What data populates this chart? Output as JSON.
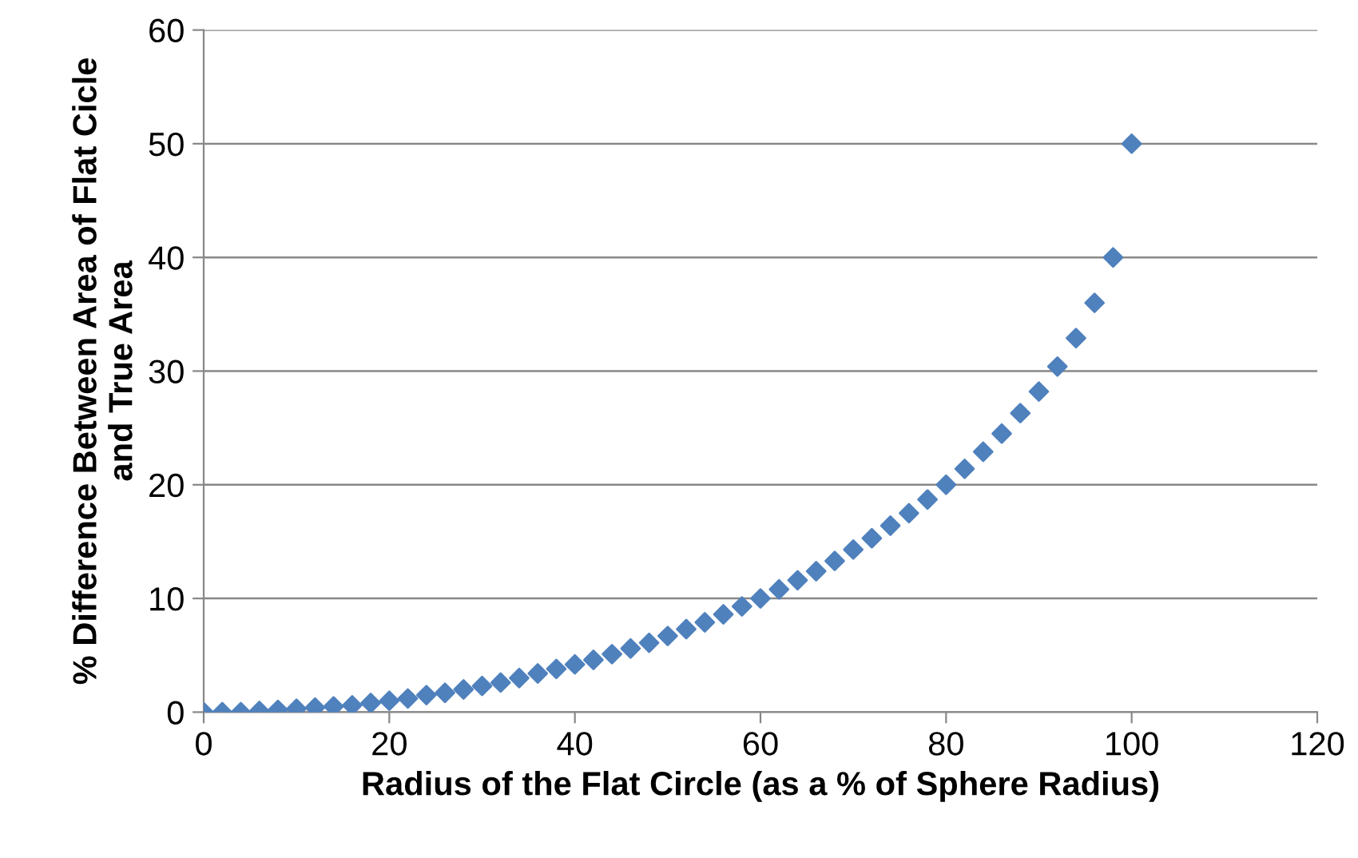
{
  "chart_data": {
    "type": "scatter",
    "xlabel": "Radius of the Flat Circle (as a % of Sphere Radius)",
    "ylabel": "% Difference Between Area of Flat Cicle\nand True Area",
    "x": [
      0,
      2,
      4,
      6,
      8,
      10,
      12,
      14,
      16,
      18,
      20,
      22,
      24,
      26,
      28,
      30,
      32,
      34,
      36,
      38,
      40,
      42,
      44,
      46,
      48,
      50,
      52,
      54,
      56,
      58,
      60,
      62,
      64,
      66,
      68,
      70,
      72,
      74,
      76,
      78,
      80,
      82,
      84,
      86,
      88,
      90,
      92,
      94,
      96,
      98,
      100
    ],
    "series": [
      {
        "color": "#4f81bd",
        "values": [
          0,
          0.0,
          0.0,
          0.1,
          0.2,
          0.3,
          0.4,
          0.5,
          0.6,
          0.8,
          1.0,
          1.2,
          1.5,
          1.7,
          2.0,
          2.3,
          2.6,
          3.0,
          3.4,
          3.8,
          4.2,
          4.6,
          5.1,
          5.6,
          6.1,
          6.7,
          7.3,
          7.9,
          8.6,
          9.3,
          10.0,
          10.8,
          11.6,
          12.4,
          13.3,
          14.3,
          15.3,
          16.4,
          17.5,
          18.7,
          20.0,
          21.4,
          22.9,
          24.5,
          26.3,
          28.2,
          30.4,
          32.9,
          36.0,
          40.0,
          50.0
        ]
      }
    ],
    "xlim": [
      0,
      120
    ],
    "xticks": [
      0,
      20,
      40,
      60,
      80,
      100,
      120
    ],
    "ylim": [
      0,
      60
    ],
    "yticks": [
      0,
      10,
      20,
      30,
      40,
      50,
      60
    ],
    "grid": "y",
    "marker": "diamond",
    "legend": false
  }
}
